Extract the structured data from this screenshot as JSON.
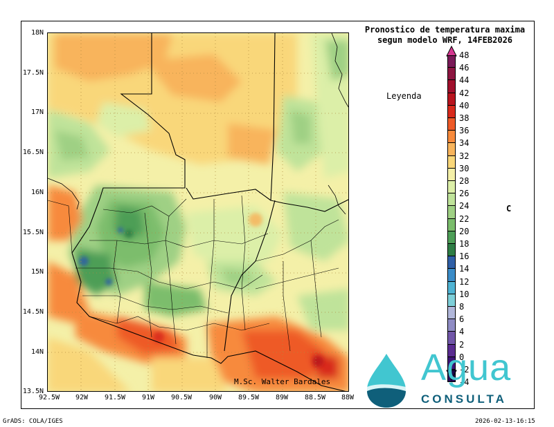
{
  "title_line1": "Pronostico de temperatura maxima",
  "title_line2": "segun modelo WRF, 14FEB2026",
  "legend_label": "Leyenda",
  "unit": "C",
  "credit": "M.Sc. Walter Bardales",
  "footer_left": "GrADS: COLA/IGES",
  "footer_right": "2026-02-13-16:15",
  "logo_word": "Agua",
  "logo_sub": "CONSULTA",
  "y_ticks": [
    "18N",
    "17.5N",
    "17N",
    "16.5N",
    "16N",
    "15.5N",
    "15N",
    "14.5N",
    "14N",
    "13.5N"
  ],
  "x_ticks": [
    "92.5W",
    "92W",
    "91.5W",
    "91W",
    "90.5W",
    "90W",
    "89.5W",
    "89W",
    "88.5W",
    "88W"
  ],
  "colorbar": {
    "labels": [
      "48",
      "46",
      "44",
      "42",
      "40",
      "38",
      "36",
      "34",
      "32",
      "30",
      "28",
      "26",
      "24",
      "22",
      "20",
      "18",
      "16",
      "14",
      "12",
      "10",
      "8",
      "6",
      "4",
      "2",
      "0",
      "-2",
      "-4"
    ],
    "colors": [
      "#7a1a58",
      "#8c1540",
      "#a0102c",
      "#b8141e",
      "#d82a1c",
      "#ee5a28",
      "#f78a3c",
      "#f8b45c",
      "#f9d77a",
      "#f4f0a8",
      "#dcefa8",
      "#bfe39a",
      "#9fd084",
      "#7bbd6c",
      "#4d9e57",
      "#2e7d45",
      "#2f5fa6",
      "#3a8cc8",
      "#4fb3d3",
      "#7ecfd9",
      "#b1b7da",
      "#8f8cc4",
      "#7156a8",
      "#5a2c90",
      "#3e1577",
      "#2a0a5c"
    ]
  },
  "chart_data": {
    "type": "heatmap",
    "title": "Pronostico de temperatura maxima segun modelo WRF, 14FEB2026",
    "xlim": [
      -92.5,
      -88.0
    ],
    "ylim": [
      13.5,
      18.0
    ],
    "unit": "C"
  }
}
